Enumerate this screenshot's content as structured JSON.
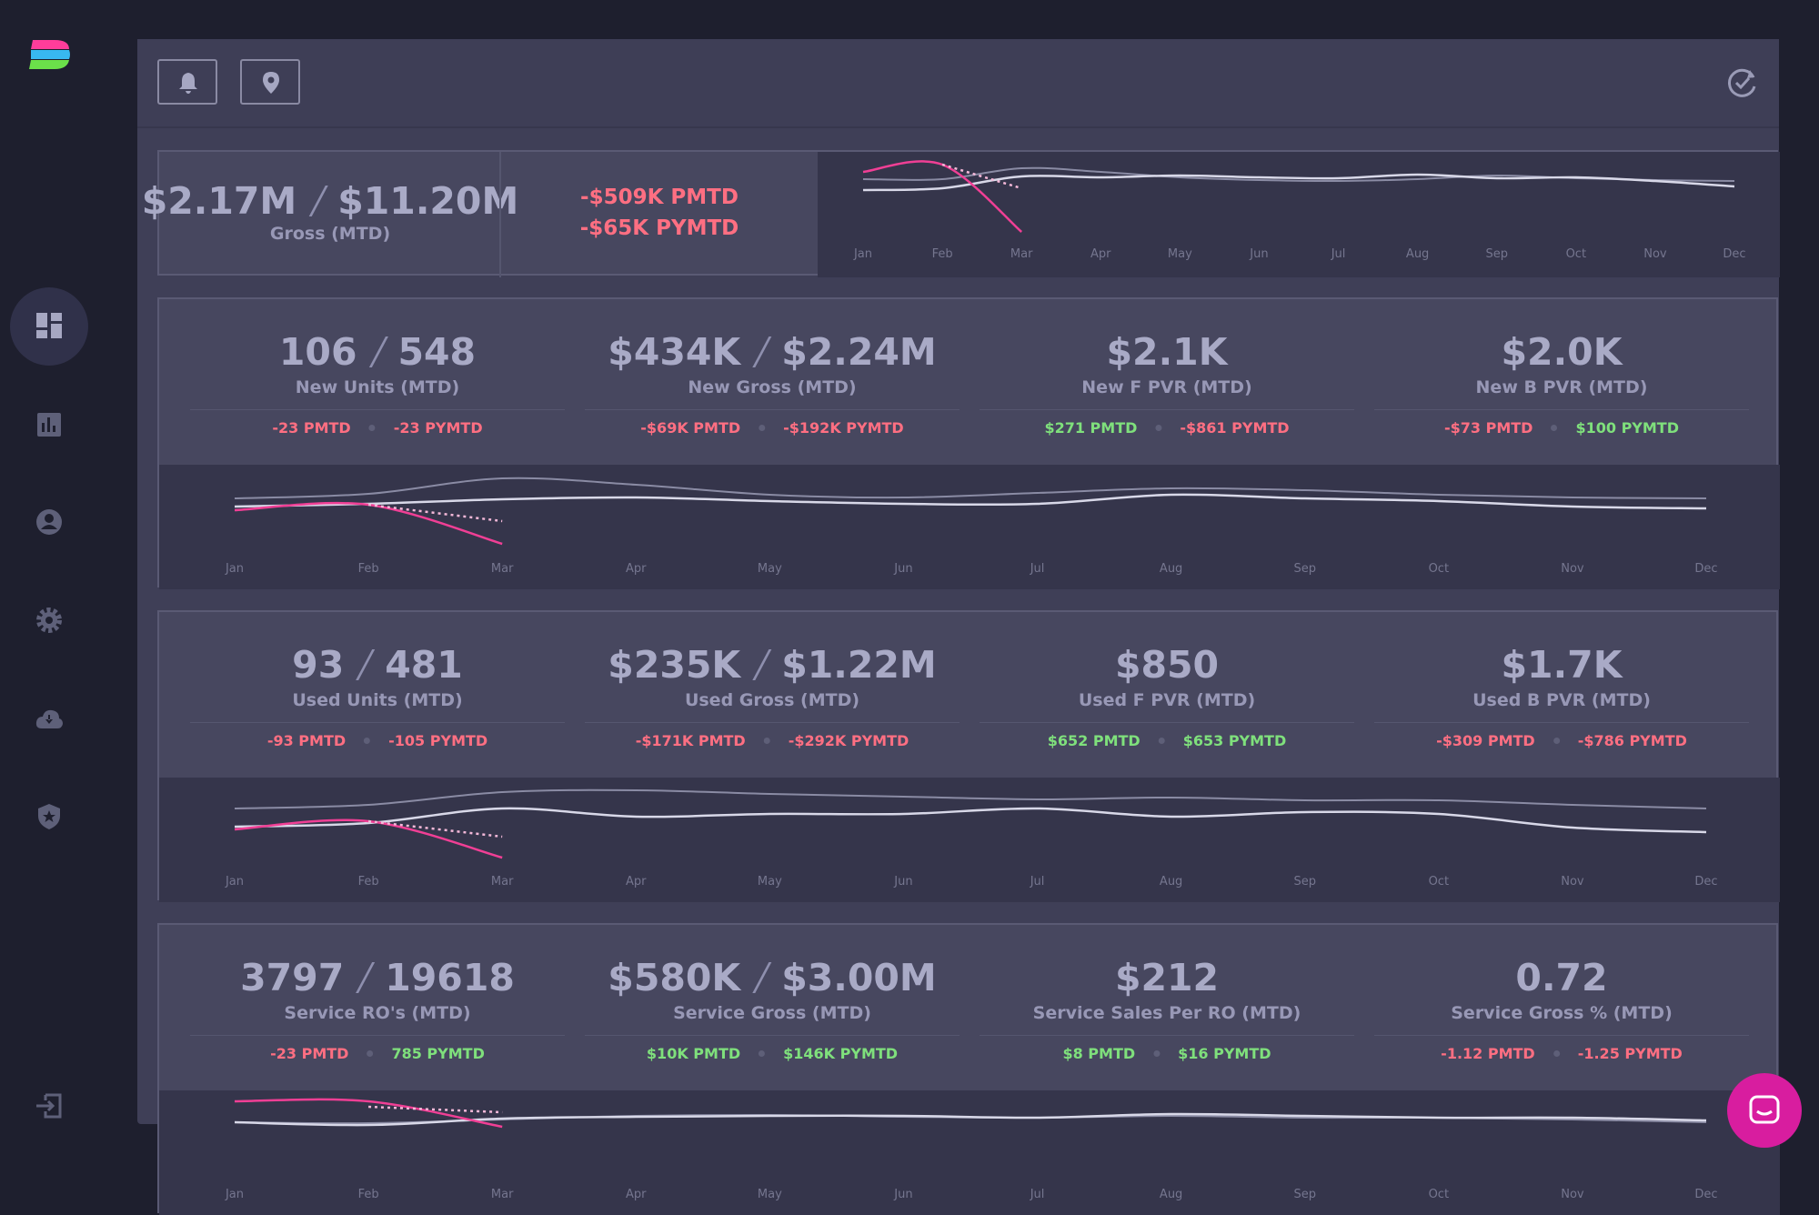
{
  "gross": {
    "mtd": "$2.17M",
    "total": "$11.20M",
    "label": "Gross (MTD)",
    "pmtd": "-$509K PMTD",
    "pymtd": "-$65K PYMTD"
  },
  "months": [
    "Jan",
    "Feb",
    "Mar",
    "Apr",
    "May",
    "Jun",
    "Jul",
    "Aug",
    "Sep",
    "Oct",
    "Nov",
    "Dec"
  ],
  "sections": [
    {
      "kpis": [
        {
          "mtd": "106",
          "total": "548",
          "label": "New Units (MTD)",
          "deltas": [
            {
              "text": "-23 PMTD",
              "trend": "down"
            },
            {
              "text": "-23 PYMTD",
              "trend": "down"
            }
          ]
        },
        {
          "mtd": "$434K",
          "total": "$2.24M",
          "label": "New Gross (MTD)",
          "deltas": [
            {
              "text": "-$69K PMTD",
              "trend": "down"
            },
            {
              "text": "-$192K PYMTD",
              "trend": "down"
            }
          ]
        },
        {
          "mtd": "$2.1K",
          "label": "New F PVR (MTD)",
          "deltas": [
            {
              "text": "$271 PMTD",
              "trend": "up"
            },
            {
              "text": "-$861 PYMTD",
              "trend": "down"
            }
          ]
        },
        {
          "mtd": "$2.0K",
          "label": "New B PVR (MTD)",
          "deltas": [
            {
              "text": "-$73 PMTD",
              "trend": "down"
            },
            {
              "text": "$100 PYMTD",
              "trend": "up"
            }
          ]
        }
      ]
    },
    {
      "kpis": [
        {
          "mtd": "93",
          "total": "481",
          "label": "Used Units (MTD)",
          "deltas": [
            {
              "text": "-93 PMTD",
              "trend": "down"
            },
            {
              "text": "-105 PYMTD",
              "trend": "down"
            }
          ]
        },
        {
          "mtd": "$235K",
          "total": "$1.22M",
          "label": "Used Gross (MTD)",
          "deltas": [
            {
              "text": "-$171K PMTD",
              "trend": "down"
            },
            {
              "text": "-$292K PYMTD",
              "trend": "down"
            }
          ]
        },
        {
          "mtd": "$850",
          "label": "Used F PVR (MTD)",
          "deltas": [
            {
              "text": "$652 PMTD",
              "trend": "up"
            },
            {
              "text": "$653 PYMTD",
              "trend": "up"
            }
          ]
        },
        {
          "mtd": "$1.7K",
          "label": "Used B PVR (MTD)",
          "deltas": [
            {
              "text": "-$309 PMTD",
              "trend": "down"
            },
            {
              "text": "-$786 PYMTD",
              "trend": "down"
            }
          ]
        }
      ]
    },
    {
      "kpis": [
        {
          "mtd": "3797",
          "total": "19618",
          "label": "Service RO's (MTD)",
          "deltas": [
            {
              "text": "-23 PMTD",
              "trend": "down"
            },
            {
              "text": "785 PYMTD",
              "trend": "up"
            }
          ]
        },
        {
          "mtd": "$580K",
          "total": "$3.00M",
          "label": "Service Gross (MTD)",
          "deltas": [
            {
              "text": "$10K PMTD",
              "trend": "up"
            },
            {
              "text": "$146K PYMTD",
              "trend": "up"
            }
          ]
        },
        {
          "mtd": "$212",
          "label": "Service Sales Per RO (MTD)",
          "deltas": [
            {
              "text": "$8 PMTD",
              "trend": "up"
            },
            {
              "text": "$16 PYMTD",
              "trend": "up"
            }
          ]
        },
        {
          "mtd": "0.72",
          "label": "Service Gross % (MTD)",
          "deltas": [
            {
              "text": "-1.12 PMTD",
              "trend": "down"
            },
            {
              "text": "-1.25 PYMTD",
              "trend": "down"
            }
          ]
        }
      ]
    }
  ]
}
